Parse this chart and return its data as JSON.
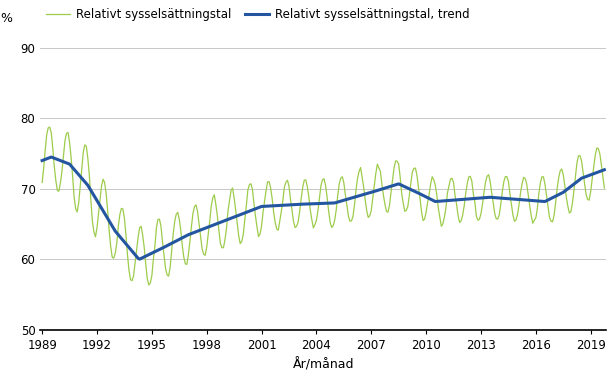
{
  "ylabel_text": "%",
  "xlabel": "År/månad",
  "legend_label_raw": "Relativt sysselsättningstal",
  "legend_label_trend": "Relativt sysselsättningstal, trend",
  "ylim": [
    50,
    90
  ],
  "yticks": [
    50,
    60,
    70,
    80,
    90
  ],
  "xticks": [
    1989,
    1992,
    1995,
    1998,
    2001,
    2004,
    2007,
    2010,
    2013,
    2016,
    2019
  ],
  "xlim_start": 1988.9,
  "xlim_end": 2019.85,
  "raw_color": "#9dcc4b",
  "trend_color": "#2355a0",
  "background_color": "#ffffff",
  "grid_color": "#c8c8c8",
  "raw_linewidth": 0.9,
  "trend_linewidth": 2.2,
  "fig_width": 6.15,
  "fig_height": 3.78,
  "dpi": 100
}
